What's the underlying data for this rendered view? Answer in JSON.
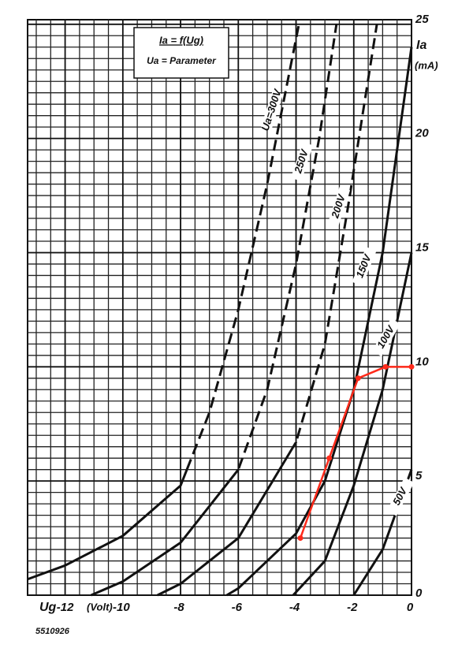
{
  "chart_data": {
    "type": "line",
    "annotation": [
      "Ia = f(Ug)",
      "Ua = Parameter"
    ],
    "xlabel": "Ug",
    "xunit": "(Volt)",
    "ylabel": "Ia",
    "yunit": "(mA)",
    "code": "5510926",
    "xlim": [
      -13.3,
      0
    ],
    "ylim": [
      0,
      25.2
    ],
    "xticks": [
      -12,
      -10,
      -8,
      -6,
      -4,
      -2,
      0
    ],
    "yticks": [
      0,
      5,
      10,
      15,
      20,
      25
    ],
    "grid": true,
    "minor_step": 0.5,
    "series": [
      {
        "name": "Ua=300V",
        "color": "#111111",
        "dashed_above": 5.5,
        "x": [
          -13.3,
          -12,
          -10,
          -8,
          -7,
          -6,
          -5,
          -3.9
        ],
        "values": [
          0.7,
          1.3,
          2.6,
          4.8,
          8,
          12.5,
          18,
          25
        ]
      },
      {
        "name": "250V",
        "color": "#111111",
        "dashed_above": 5.5,
        "x": [
          -11.1,
          -10,
          -8,
          -6,
          -5,
          -4,
          -3.2,
          -2.6
        ],
        "values": [
          0,
          0.6,
          2.3,
          5.5,
          9,
          14.5,
          20,
          25
        ]
      },
      {
        "name": "200V",
        "color": "#111111",
        "dashed_above": 6.7,
        "x": [
          -8.8,
          -8,
          -6,
          -4,
          -3,
          -2.2,
          -1.2
        ],
        "values": [
          0,
          0.5,
          2.5,
          6.7,
          11,
          17,
          25
        ]
      },
      {
        "name": "150V",
        "color": "#111111",
        "x": [
          -6.4,
          -6,
          -4,
          -3,
          -2,
          -1,
          0
        ],
        "values": [
          0,
          0.3,
          2.7,
          5,
          9,
          15,
          24
        ]
      },
      {
        "name": "100V",
        "color": "#111111",
        "x": [
          -4.1,
          -3,
          -2,
          -1,
          0
        ],
        "values": [
          0,
          1.5,
          4.8,
          9,
          15
        ]
      },
      {
        "name": "50V",
        "color": "#111111",
        "x": [
          -2,
          -1,
          0
        ],
        "values": [
          0,
          2,
          5.5
        ]
      },
      {
        "color": "#ff2a1a",
        "x": [
          -3.85,
          -2.85,
          -1.85,
          -0.9,
          0
        ],
        "values": [
          2.5,
          6,
          9.5,
          10,
          10
        ]
      }
    ]
  }
}
